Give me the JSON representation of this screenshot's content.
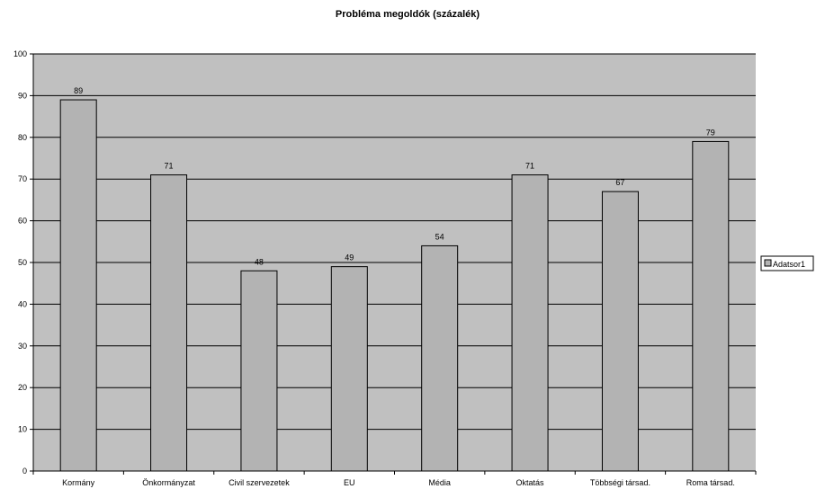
{
  "chart_data": {
    "type": "bar",
    "title": "Probléma megoldók (százalék)",
    "categories": [
      "Kormány",
      "Önkormányzat",
      "Civil szervezetek",
      "EU",
      "Média",
      "Oktatás",
      "Többségi társad.",
      "Roma társad."
    ],
    "series": [
      {
        "name": "Adatsor1",
        "values": [
          89,
          71,
          48,
          49,
          54,
          71,
          67,
          79
        ]
      }
    ],
    "ylim": [
      0,
      100
    ],
    "yticks": [
      0,
      10,
      20,
      30,
      40,
      50,
      60,
      70,
      80,
      90,
      100
    ],
    "grid": true,
    "legend_position": "right",
    "colors": {
      "plot_bg": "#c0c0c0",
      "bar": "#b3b3b3",
      "bar_stroke": "#000000",
      "grid": "#000000"
    }
  }
}
